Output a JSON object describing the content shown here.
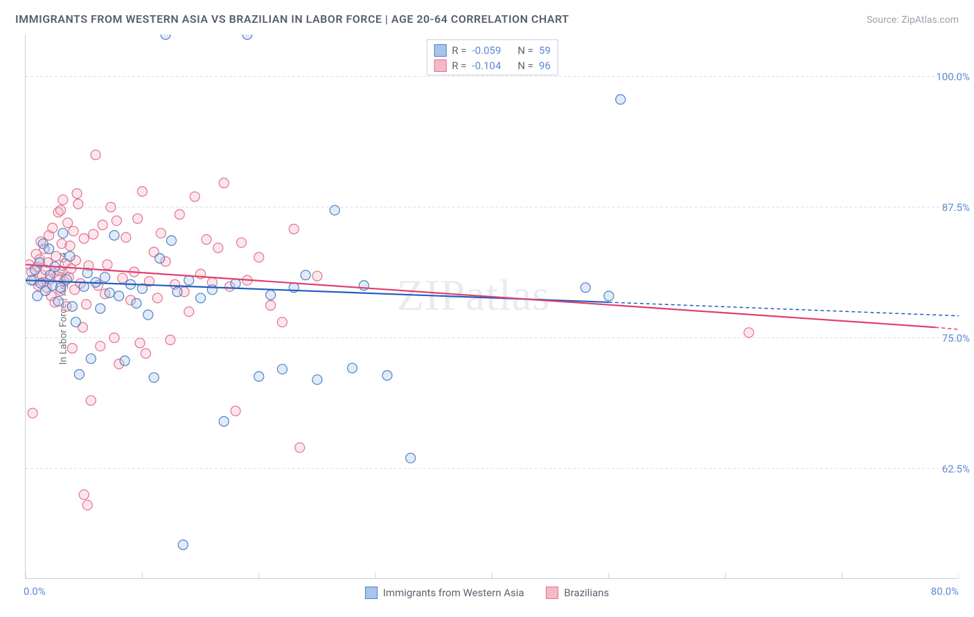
{
  "title": "IMMIGRANTS FROM WESTERN ASIA VS BRAZILIAN IN LABOR FORCE | AGE 20-64 CORRELATION CHART",
  "source": "Source: ZipAtlas.com",
  "watermark": "ZIPatlas",
  "y_axis_label": "In Labor Force | Age 20-64",
  "chart": {
    "type": "scatter-with-regression",
    "background_color": "#ffffff",
    "grid_color": "#d8dde3",
    "grid_dash": "4,3",
    "border_color": "#c7cfd8",
    "xlim": [
      0,
      80
    ],
    "ylim": [
      52,
      104
    ],
    "x_ticks": [
      0,
      10,
      20,
      30,
      40,
      50,
      60,
      70,
      80
    ],
    "x_tick_labels": {
      "0": "0.0%",
      "80": "80.0%"
    },
    "y_ticks": [
      62.5,
      75.0,
      87.5,
      100.0
    ],
    "y_tick_labels": [
      "62.5%",
      "75.0%",
      "87.5%",
      "100.0%"
    ],
    "marker_radius": 7,
    "marker_stroke_width": 1.2,
    "marker_fill_opacity": 0.35,
    "reg_line_width": 2.2,
    "reg_dash_extension": "5,4"
  },
  "series": [
    {
      "name": "Immigrants from Western Asia",
      "color_fill": "#a7c5ec",
      "color_stroke": "#4f7fc5",
      "reg_color": "#1f5fbf",
      "R": "-0.059",
      "N": "59",
      "regression": {
        "x1": 0,
        "y1": 80.5,
        "x2": 50,
        "y2": 78.4,
        "x_ext": 80,
        "y_ext": 77.1
      },
      "points": [
        [
          0.5,
          80.5
        ],
        [
          0.8,
          81.5
        ],
        [
          1.0,
          79.0
        ],
        [
          1.2,
          82.2
        ],
        [
          1.3,
          80.2
        ],
        [
          1.5,
          84.0
        ],
        [
          1.7,
          79.5
        ],
        [
          2.0,
          83.5
        ],
        [
          2.1,
          81.0
        ],
        [
          2.3,
          80.0
        ],
        [
          2.5,
          81.8
        ],
        [
          2.8,
          78.5
        ],
        [
          3.0,
          79.8
        ],
        [
          3.2,
          85.0
        ],
        [
          3.5,
          80.6
        ],
        [
          3.8,
          82.8
        ],
        [
          4.0,
          78.0
        ],
        [
          4.3,
          76.5
        ],
        [
          4.6,
          71.5
        ],
        [
          5.0,
          79.9
        ],
        [
          5.3,
          81.2
        ],
        [
          5.6,
          73.0
        ],
        [
          6.0,
          80.3
        ],
        [
          6.4,
          77.8
        ],
        [
          6.8,
          80.8
        ],
        [
          7.2,
          79.3
        ],
        [
          7.6,
          84.8
        ],
        [
          8.0,
          79.0
        ],
        [
          8.5,
          72.8
        ],
        [
          9.0,
          80.1
        ],
        [
          9.5,
          78.3
        ],
        [
          10.0,
          79.7
        ],
        [
          10.5,
          77.2
        ],
        [
          11.0,
          71.2
        ],
        [
          11.5,
          82.6
        ],
        [
          12.0,
          104.0
        ],
        [
          12.5,
          84.3
        ],
        [
          13.0,
          79.4
        ],
        [
          13.5,
          55.2
        ],
        [
          14.0,
          80.5
        ],
        [
          15.0,
          78.8
        ],
        [
          16.0,
          79.6
        ],
        [
          17.0,
          67.0
        ],
        [
          18.0,
          80.2
        ],
        [
          19.0,
          104.0
        ],
        [
          20.0,
          71.3
        ],
        [
          21.0,
          79.1
        ],
        [
          22.0,
          72.0
        ],
        [
          23.0,
          79.8
        ],
        [
          24.0,
          81.0
        ],
        [
          25.0,
          71.0
        ],
        [
          26.5,
          87.2
        ],
        [
          28.0,
          72.1
        ],
        [
          29.0,
          80.0
        ],
        [
          31.0,
          71.4
        ],
        [
          33.0,
          63.5
        ],
        [
          48.0,
          79.8
        ],
        [
          51.0,
          97.8
        ],
        [
          50.0,
          79.0
        ]
      ]
    },
    {
      "name": "Brazilians",
      "color_fill": "#f3b9c7",
      "color_stroke": "#e56f8f",
      "reg_color": "#e23d6f",
      "R": "-0.104",
      "N": "96",
      "regression": {
        "x1": 0,
        "y1": 82.0,
        "x2": 78,
        "y2": 76.0,
        "x_ext": 80,
        "y_ext": 75.8
      },
      "points": [
        [
          0.3,
          82.0
        ],
        [
          0.5,
          81.3
        ],
        [
          0.7,
          80.5
        ],
        [
          0.9,
          83.0
        ],
        [
          1.0,
          81.8
        ],
        [
          1.1,
          80.0
        ],
        [
          1.2,
          82.5
        ],
        [
          1.3,
          84.2
        ],
        [
          1.4,
          81.0
        ],
        [
          1.5,
          80.3
        ],
        [
          1.6,
          83.5
        ],
        [
          1.7,
          81.5
        ],
        [
          1.8,
          79.8
        ],
        [
          1.9,
          82.2
        ],
        [
          2.0,
          84.8
        ],
        [
          2.1,
          80.6
        ],
        [
          2.2,
          79.0
        ],
        [
          2.3,
          85.5
        ],
        [
          2.4,
          81.2
        ],
        [
          2.5,
          78.4
        ],
        [
          2.6,
          82.8
        ],
        [
          2.7,
          80.9
        ],
        [
          2.8,
          87.0
        ],
        [
          2.9,
          81.4
        ],
        [
          3.0,
          79.5
        ],
        [
          3.1,
          84.0
        ],
        [
          3.2,
          88.2
        ],
        [
          3.3,
          80.4
        ],
        [
          3.4,
          82.1
        ],
        [
          3.5,
          78.0
        ],
        [
          3.6,
          86.0
        ],
        [
          3.7,
          80.8
        ],
        [
          3.8,
          83.8
        ],
        [
          3.9,
          81.6
        ],
        [
          4.0,
          74.0
        ],
        [
          4.1,
          85.2
        ],
        [
          4.2,
          79.6
        ],
        [
          4.3,
          82.4
        ],
        [
          4.5,
          87.8
        ],
        [
          4.7,
          80.2
        ],
        [
          4.9,
          76.0
        ],
        [
          5.0,
          84.5
        ],
        [
          5.2,
          78.2
        ],
        [
          5.4,
          81.9
        ],
        [
          5.6,
          69.0
        ],
        [
          5.8,
          84.9
        ],
        [
          6.0,
          92.5
        ],
        [
          6.2,
          80.0
        ],
        [
          6.4,
          74.2
        ],
        [
          6.6,
          85.8
        ],
        [
          6.8,
          79.2
        ],
        [
          7.0,
          82.0
        ],
        [
          7.3,
          87.5
        ],
        [
          7.6,
          75.0
        ],
        [
          5.0,
          60.0
        ],
        [
          5.3,
          59.0
        ],
        [
          8.0,
          72.5
        ],
        [
          8.3,
          80.7
        ],
        [
          8.6,
          84.6
        ],
        [
          9.0,
          78.6
        ],
        [
          9.3,
          81.3
        ],
        [
          9.6,
          86.4
        ],
        [
          10.0,
          89.0
        ],
        [
          10.3,
          73.5
        ],
        [
          10.6,
          80.4
        ],
        [
          11.0,
          83.2
        ],
        [
          11.3,
          78.8
        ],
        [
          11.6,
          85.0
        ],
        [
          12.0,
          82.3
        ],
        [
          12.4,
          74.8
        ],
        [
          12.8,
          80.1
        ],
        [
          13.2,
          86.8
        ],
        [
          13.6,
          79.4
        ],
        [
          14.0,
          77.5
        ],
        [
          14.5,
          88.5
        ],
        [
          15.0,
          81.1
        ],
        [
          15.5,
          84.4
        ],
        [
          16.0,
          80.3
        ],
        [
          16.5,
          83.6
        ],
        [
          17.0,
          89.8
        ],
        [
          17.5,
          79.9
        ],
        [
          18.0,
          68.0
        ],
        [
          18.5,
          84.1
        ],
        [
          19.0,
          80.5
        ],
        [
          20.0,
          82.7
        ],
        [
          21.0,
          78.1
        ],
        [
          22.0,
          76.5
        ],
        [
          23.0,
          85.4
        ],
        [
          23.5,
          64.5
        ],
        [
          25.0,
          80.9
        ],
        [
          62.0,
          75.5
        ],
        [
          0.6,
          67.8
        ],
        [
          3.0,
          87.2
        ],
        [
          4.4,
          88.8
        ],
        [
          7.8,
          86.2
        ],
        [
          9.8,
          74.5
        ]
      ]
    }
  ],
  "corr_box": {
    "R_label": "R =",
    "N_label": "N ="
  },
  "bottom_legend": {
    "item1": "Immigrants from Western Asia",
    "item2": "Brazilians"
  }
}
